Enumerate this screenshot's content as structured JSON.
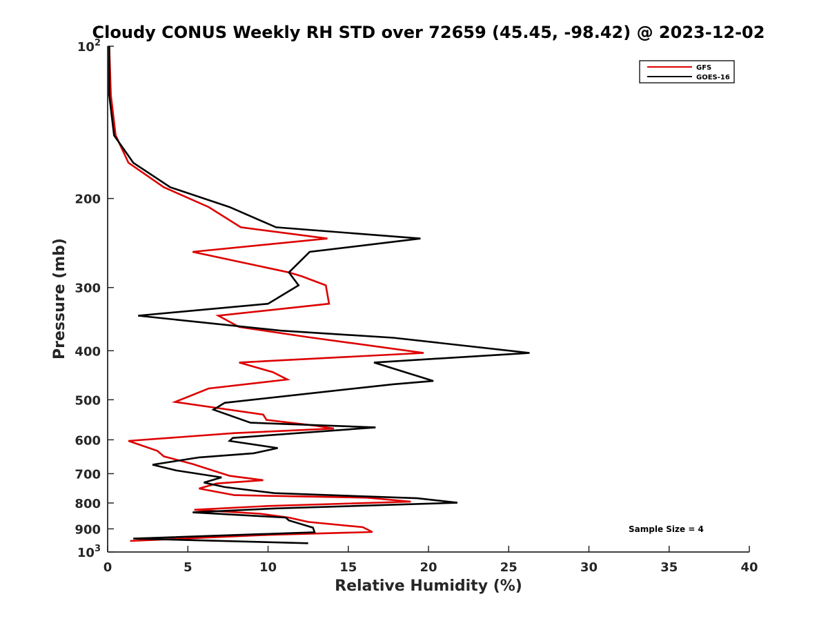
{
  "chart_data": {
    "type": "line",
    "title": "Cloudy CONUS Weekly RH STD over 72659 (45.45, -98.42) @ 2023-12-02",
    "xlabel": "Relative Humidity (%)",
    "ylabel": "Pressure (mb)",
    "xlim": [
      0,
      40
    ],
    "ylim": [
      100,
      1000
    ],
    "y_scale": "log",
    "y_reversed": true,
    "grid": false,
    "legend_position": "top-right",
    "x_ticks": [
      0,
      5,
      10,
      15,
      20,
      25,
      30,
      35,
      40
    ],
    "y_ticks": [
      {
        "value": 100,
        "label": "10",
        "sup": "2"
      },
      {
        "value": 200,
        "label": "200",
        "sup": ""
      },
      {
        "value": 300,
        "label": "300",
        "sup": ""
      },
      {
        "value": 400,
        "label": "400",
        "sup": ""
      },
      {
        "value": 500,
        "label": "500",
        "sup": ""
      },
      {
        "value": 600,
        "label": "600",
        "sup": ""
      },
      {
        "value": 700,
        "label": "700",
        "sup": ""
      },
      {
        "value": 800,
        "label": "800",
        "sup": ""
      },
      {
        "value": 900,
        "label": "900",
        "sup": ""
      },
      {
        "value": 1000,
        "label": "10",
        "sup": "3"
      }
    ],
    "series": [
      {
        "name": "GFS",
        "color": "#dd0000",
        "points": [
          [
            0.1,
            100
          ],
          [
            0.2,
            125
          ],
          [
            0.5,
            150
          ],
          [
            1.3,
            170
          ],
          [
            3.5,
            190
          ],
          [
            6.3,
            208
          ],
          [
            8.3,
            228
          ],
          [
            13.7,
            240
          ],
          [
            5.3,
            255
          ],
          [
            11.3,
            280
          ],
          [
            12.1,
            285
          ],
          [
            13.6,
            297
          ],
          [
            13.8,
            323
          ],
          [
            6.9,
            341
          ],
          [
            8.2,
            359
          ],
          [
            12.5,
            376
          ],
          [
            19.7,
            404
          ],
          [
            8.2,
            422
          ],
          [
            10.3,
            441
          ],
          [
            11.2,
            456
          ],
          [
            6.3,
            475
          ],
          [
            4.2,
            505
          ],
          [
            9.7,
            535
          ],
          [
            9.9,
            548
          ],
          [
            13.0,
            563
          ],
          [
            14.1,
            570
          ],
          [
            7.9,
            582
          ],
          [
            1.3,
            603
          ],
          [
            3.1,
            631
          ],
          [
            3.5,
            647
          ],
          [
            5.3,
            670
          ],
          [
            7.6,
            707
          ],
          [
            9.7,
            721
          ],
          [
            6.8,
            732
          ],
          [
            5.7,
            749
          ],
          [
            7.9,
            772
          ],
          [
            16.2,
            781
          ],
          [
            18.9,
            795
          ],
          [
            10.0,
            811
          ],
          [
            5.4,
            825
          ],
          [
            9.5,
            840
          ],
          [
            11.3,
            855
          ],
          [
            12.5,
            872
          ],
          [
            15.9,
            893
          ],
          [
            16.5,
            913
          ],
          [
            10.0,
            925
          ],
          [
            1.4,
            951
          ]
        ]
      },
      {
        "name": "GOES-16",
        "color": "#000000",
        "points": [
          [
            0.1,
            100
          ],
          [
            0.1,
            125
          ],
          [
            0.4,
            150
          ],
          [
            1.6,
            170
          ],
          [
            3.9,
            190
          ],
          [
            7.6,
            208
          ],
          [
            10.5,
            228
          ],
          [
            19.5,
            240
          ],
          [
            12.6,
            255
          ],
          [
            11.3,
            280
          ],
          [
            11.9,
            297
          ],
          [
            10.0,
            323
          ],
          [
            1.9,
            341
          ],
          [
            10.8,
            365
          ],
          [
            17.8,
            377
          ],
          [
            26.3,
            404
          ],
          [
            16.6,
            422
          ],
          [
            20.3,
            459
          ],
          [
            17.8,
            466
          ],
          [
            7.3,
            507
          ],
          [
            6.6,
            523
          ],
          [
            8.9,
            555
          ],
          [
            16.7,
            567
          ],
          [
            7.8,
            595
          ],
          [
            7.6,
            603
          ],
          [
            10.6,
            623
          ],
          [
            9.1,
            638
          ],
          [
            5.7,
            650
          ],
          [
            2.8,
            672
          ],
          [
            4.3,
            690
          ],
          [
            7.1,
            712
          ],
          [
            6.0,
            729
          ],
          [
            7.3,
            744
          ],
          [
            10.4,
            765
          ],
          [
            19.3,
            783
          ],
          [
            21.8,
            799
          ],
          [
            10.5,
            820
          ],
          [
            5.3,
            835
          ],
          [
            11.1,
            855
          ],
          [
            11.3,
            866
          ],
          [
            12.8,
            895
          ],
          [
            12.9,
            914
          ],
          [
            1.6,
            941
          ],
          [
            12.5,
            961
          ]
        ]
      }
    ],
    "annotation": "Sample Size = 4"
  }
}
